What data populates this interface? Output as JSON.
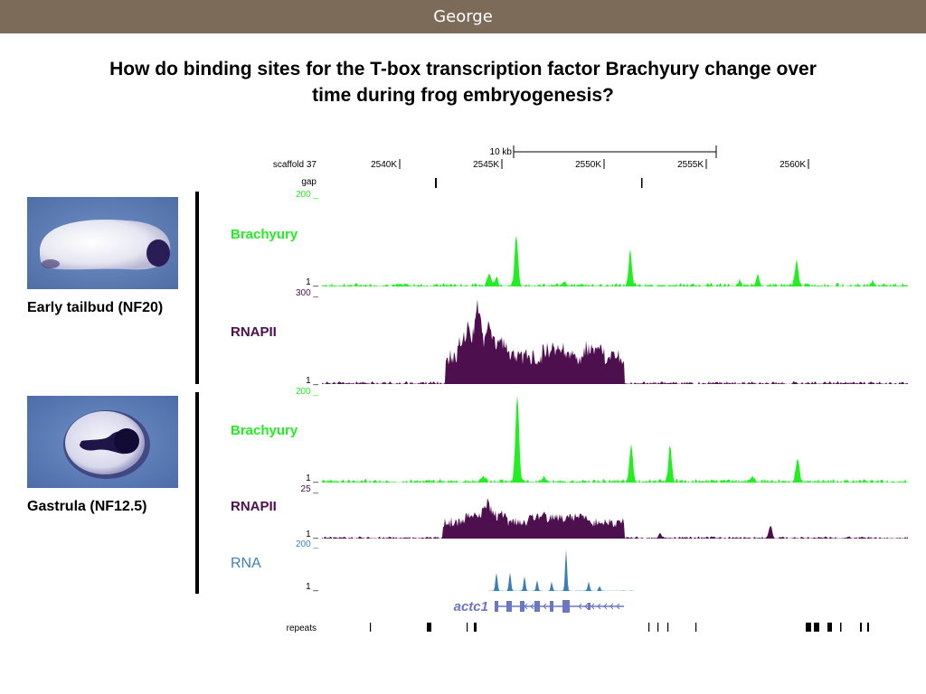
{
  "header": {
    "title": "George"
  },
  "question": {
    "line1": "How do binding sites for the T-box transcription factor Brachyury change over",
    "line2": "time during frog embryogenesis?"
  },
  "panels": [
    {
      "label": "Early tailbud (NF20)"
    },
    {
      "label": "Gastrula (NF12.5)"
    }
  ],
  "browser": {
    "scale_label": "10 kb",
    "chrom_label": "scaffold 37",
    "positions": [
      "2540K",
      "2545K",
      "2550K",
      "2555K",
      "2560K"
    ],
    "gap_label": "gap",
    "repeats_label": "repeats",
    "gene_name": "actc1",
    "tracks": [
      {
        "name": "Brachyury",
        "max": "200 _",
        "min": "1 _"
      },
      {
        "name": "RNAPII",
        "max": "300 _",
        "min": "1 _"
      },
      {
        "name": "Brachyury",
        "max": "200 _",
        "min": "1 _"
      },
      {
        "name": "RNAPII",
        "max": "25 _",
        "min": "1 _"
      },
      {
        "name": "RNA",
        "max": "200 _",
        "min": "1 _"
      }
    ]
  },
  "colors": {
    "header_bg": "#7b6b58",
    "brachyury": "#22ee22",
    "rnapii": "#4d0f4d",
    "rna": "#3a80b8",
    "gene": "#6b77c0"
  }
}
